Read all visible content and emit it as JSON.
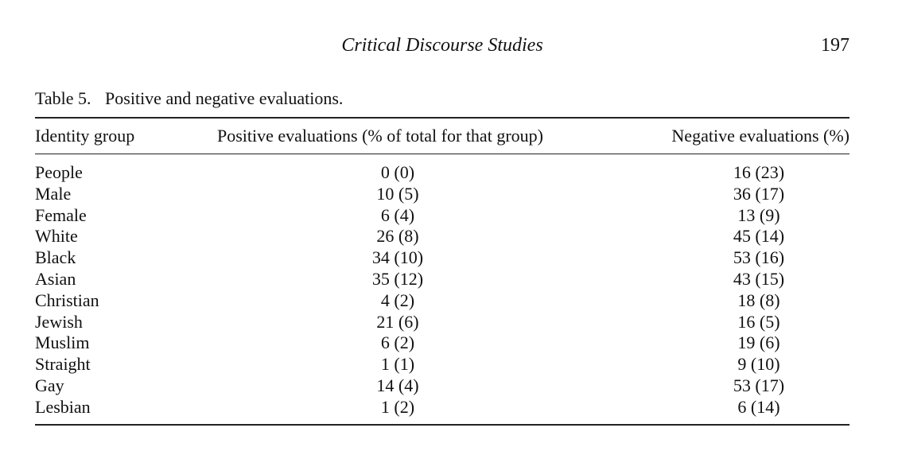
{
  "running_head": {
    "journal_title": "Critical Discourse Studies",
    "page_number": "197"
  },
  "table": {
    "label": "Table 5.",
    "caption": "Positive and negative evaluations.",
    "headers": [
      "Identity group",
      "Positive evaluations (% of total for that group)",
      "Negative evaluations (%)"
    ],
    "rows": [
      [
        "People",
        "0 (0)",
        "16 (23)"
      ],
      [
        "Male",
        "10 (5)",
        "36 (17)"
      ],
      [
        "Female",
        "6 (4)",
        "13 (9)"
      ],
      [
        "White",
        "26 (8)",
        "45 (14)"
      ],
      [
        "Black",
        "34 (10)",
        "53 (16)"
      ],
      [
        "Asian",
        "35 (12)",
        "43 (15)"
      ],
      [
        "Christian",
        "4 (2)",
        "18 (8)"
      ],
      [
        "Jewish",
        "21 (6)",
        "16 (5)"
      ],
      [
        "Muslim",
        "6 (2)",
        "19 (6)"
      ],
      [
        "Straight",
        "1 (1)",
        "9 (10)"
      ],
      [
        "Gay",
        "14 (4)",
        "53 (17)"
      ],
      [
        "Lesbian",
        "1 (2)",
        "6 (14)"
      ]
    ]
  }
}
